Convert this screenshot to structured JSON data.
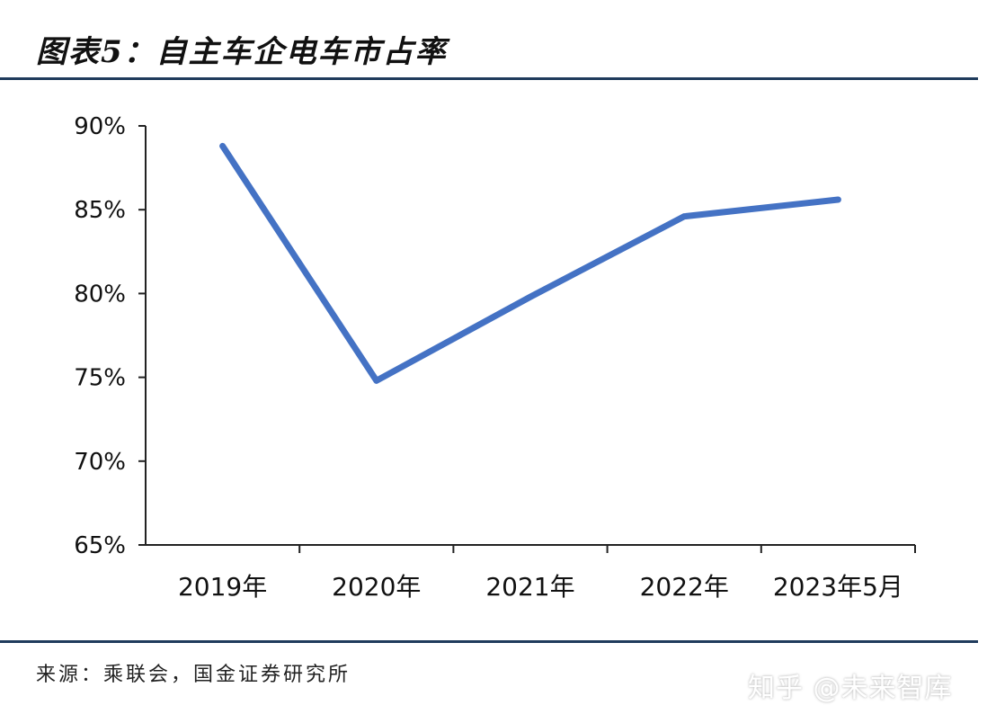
{
  "header": {
    "title": "图表5：自主车企电车市占率"
  },
  "footer": {
    "source": "来源：乘联会，国金证券研究所"
  },
  "watermark": {
    "text": "知乎 @未来智库"
  },
  "chart_data": {
    "type": "line",
    "title": "图表5：自主车企电车市占率",
    "xlabel": "",
    "ylabel": "",
    "categories": [
      "2019年",
      "2020年",
      "2021年",
      "2022年",
      "2023年5月"
    ],
    "series": [
      {
        "values": [
          88.8,
          74.8,
          79.8,
          84.6,
          85.6
        ]
      }
    ],
    "ylim": [
      65,
      90
    ],
    "yticks": [
      65,
      70,
      75,
      80,
      85,
      90
    ],
    "ytick_labels": [
      "65%",
      "70%",
      "75%",
      "80%",
      "85%",
      "90%"
    ],
    "line_color": "#4472c4",
    "grid": false,
    "legend": "none"
  }
}
